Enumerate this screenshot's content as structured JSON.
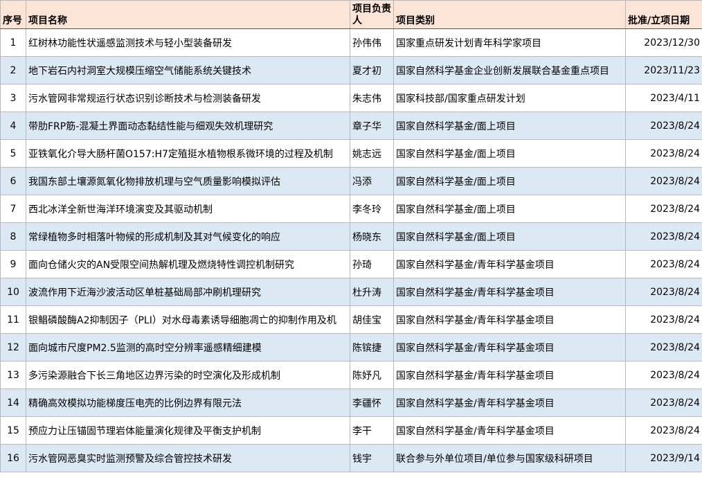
{
  "table": {
    "header": [
      "序号",
      "项目名称",
      "项目负责人",
      "项目类别",
      "批准/立项日期"
    ],
    "rows": [
      [
        "1",
        "红树林功能性状遥感监测技术与轻小型装备研发",
        "孙伟伟",
        "国家重点研发计划青年科学家项目",
        "2023/12/30"
      ],
      [
        "2",
        "地下岩石内衬洞室大规模压缩空气储能系统关键技术",
        "夏才初",
        "国家自然科学基金企业创新发展联合基金重点项目",
        "2023/11/23"
      ],
      [
        "3",
        "污水管网非常规运行状态识别诊断技术与检测装备研发",
        "朱志伟",
        "国家科技部/国家重点研发计划",
        "2023/4/11"
      ],
      [
        "4",
        "带肋FRP筋-混凝土界面动态黏结性能与细观失效机理研究",
        "章子华",
        "国家自然科学基金/面上项目",
        "2023/8/24"
      ],
      [
        "5",
        "亚铁氧化介导大肠杆菌O157:H7定殖挺水植物根系微环境的过程及机制",
        "姚志远",
        "国家自然科学基金/面上项目",
        "2023/8/24"
      ],
      [
        "6",
        "我国东部土壤源氮氧化物排放机理与空气质量影响模拟评估",
        "冯添",
        "国家自然科学基金/面上项目",
        "2023/8/24"
      ],
      [
        "7",
        "西北冰洋全新世海洋环境演变及其驱动机制",
        "李冬玲",
        "国家自然科学基金/面上项目",
        "2023/8/24"
      ],
      [
        "8",
        "常绿植物多时相落叶物候的形成机制及其对气候变化的响应",
        "杨晓东",
        "国家自然科学基金/面上项目",
        "2023/8/24"
      ],
      [
        "9",
        "面向仓储火灾的AN受限空间热解机理及燃烧特性调控机制研究",
        "孙琦",
        "国家自然科学基金/青年科学基金项目",
        "2023/8/24"
      ],
      [
        "10",
        "波流作用下近海沙波活动区单桩基础局部冲刷机理研究",
        "杜升涛",
        "国家自然科学基金/青年科学基金项目",
        "2023/8/24"
      ],
      [
        "11",
        "银鲳磷酸酶A2抑制因子（PLI）对水母毒素诱导细胞凋亡的抑制作用及机",
        "胡佳宝",
        "国家自然科学基金/青年科学基金项目",
        "2023/8/24"
      ],
      [
        "12",
        "面向城市尺度PM2.5监测的高时空分辨率遥感精细建模",
        "陈镔捷",
        "国家自然科学基金/青年科学基金项目",
        "2023/8/24"
      ],
      [
        "13",
        "多污染源融合下长三角地区边界污染的时空演化及形成机制",
        "陈妤凡",
        "国家自然科学基金/青年科学基金项目",
        "2023/8/24"
      ],
      [
        "14",
        "精确高效模拟功能梯度压电壳的比例边界有限元法",
        "李疆怀",
        "国家自然科学基金/青年科学基金项目",
        "2023/8/24"
      ],
      [
        "15",
        "预应力让压锚固节理岩体能量演化规律及平衡支护机制",
        "李干",
        "国家自然科学基金/青年科学基金项目",
        "2023/8/24"
      ],
      [
        "16",
        "污水管网恶臭实时监测预警及综合管控技术研发",
        "钱宇",
        "联合参与外单位项目/单位参与国家级科研项目",
        "2023/9/14"
      ]
    ]
  }
}
